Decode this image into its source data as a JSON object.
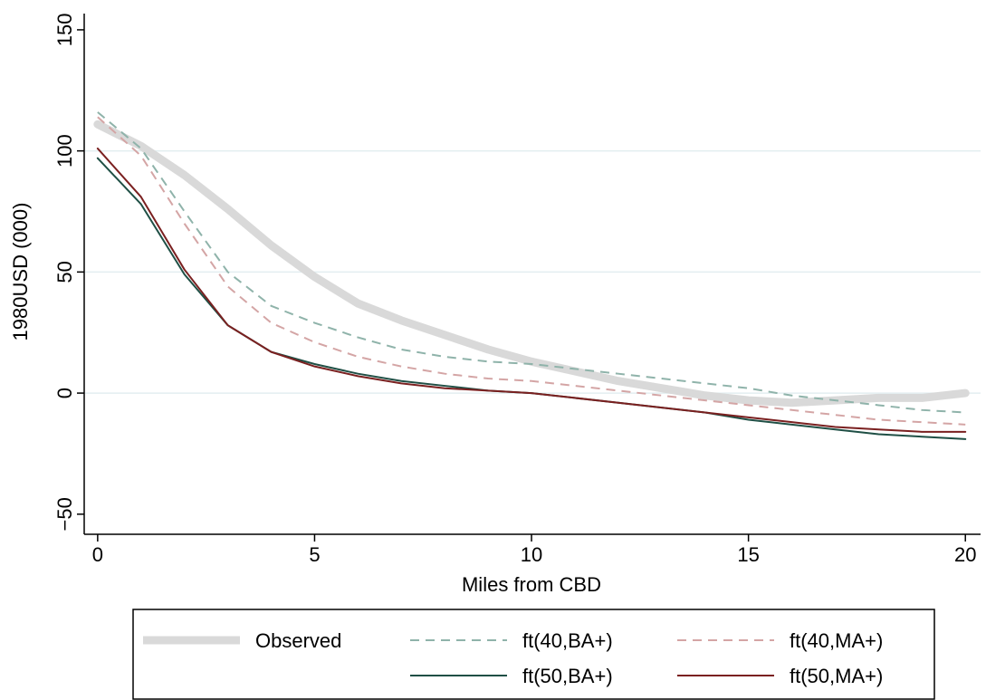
{
  "chart_data": {
    "type": "line",
    "xlabel": "Miles from CBD",
    "ylabel": "1980USD (000)",
    "x": [
      0,
      1,
      2,
      3,
      4,
      5,
      6,
      7,
      8,
      9,
      10,
      11,
      12,
      13,
      14,
      15,
      16,
      17,
      18,
      19,
      20
    ],
    "xlim": [
      -0.31,
      20.35
    ],
    "xticks": [
      0,
      5,
      10,
      15,
      20
    ],
    "ylim": [
      -58.3,
      156.7
    ],
    "yticks": [
      {
        "value": -50,
        "label": "−50"
      },
      0,
      50,
      100,
      150
    ],
    "grid": true,
    "legend": "bottom",
    "series": [
      {
        "name": "Observed",
        "color": "#d9d9d9",
        "style": "solid",
        "linewidth": 9,
        "values": [
          111,
          102,
          90,
          76,
          61,
          48,
          37,
          30,
          24,
          18,
          13,
          9,
          5,
          2,
          -1,
          -3,
          -4,
          -3,
          -2,
          -2,
          0
        ]
      },
      {
        "name": "ft(40,BA+)",
        "color": "#8fb3aa",
        "style": "dashed",
        "linewidth": 2,
        "values": [
          116,
          101,
          75,
          50,
          36,
          29,
          23,
          18,
          15,
          13,
          12,
          10,
          8,
          6,
          4,
          2,
          -1,
          -3,
          -5,
          -7,
          -8
        ]
      },
      {
        "name": "ft(40,MA+)",
        "color": "#d4a5a5",
        "style": "dashed",
        "linewidth": 2,
        "values": [
          114,
          98,
          70,
          44,
          29,
          21,
          15,
          11,
          8,
          6,
          5,
          3,
          1,
          -1,
          -3,
          -5,
          -7,
          -9,
          -11,
          -12,
          -13
        ]
      },
      {
        "name": "ft(50,BA+)",
        "color": "#1f4f45",
        "style": "solid",
        "linewidth": 2,
        "values": [
          97,
          78,
          49,
          28,
          17,
          12,
          8,
          5,
          3,
          1,
          0,
          -2,
          -4,
          -6,
          -8,
          -11,
          -13,
          -15,
          -17,
          -18,
          -19
        ]
      },
      {
        "name": "ft(50,MA+)",
        "color": "#7a2020",
        "style": "solid",
        "linewidth": 2,
        "values": [
          101,
          81,
          51,
          28,
          17,
          11,
          7,
          4,
          2,
          1,
          0,
          -2,
          -4,
          -6,
          -8,
          -10,
          -12,
          -14,
          -15,
          -16,
          -16
        ]
      }
    ]
  }
}
